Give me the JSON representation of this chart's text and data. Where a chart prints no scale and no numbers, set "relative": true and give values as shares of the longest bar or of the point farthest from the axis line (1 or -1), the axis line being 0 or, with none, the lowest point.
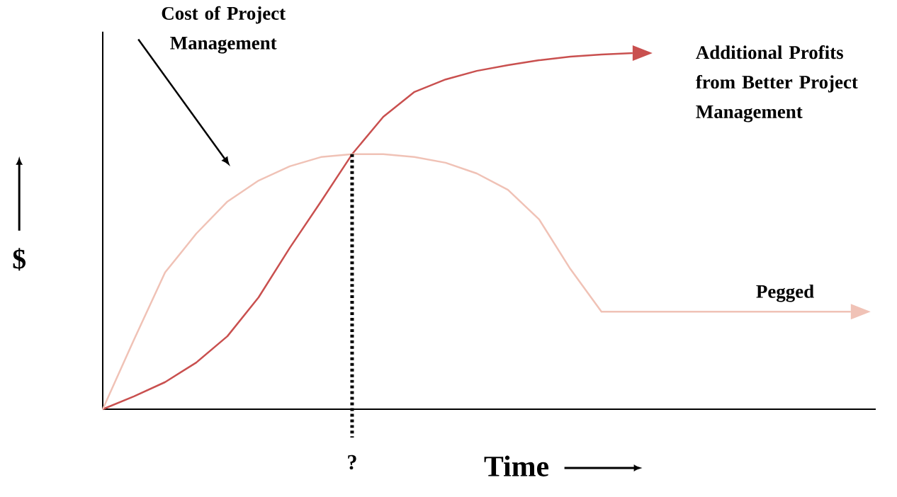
{
  "chart_data": {
    "type": "line",
    "relative": true,
    "xlabel": "Time",
    "ylabel": "$",
    "categories": [
      null,
      null,
      null,
      null,
      null,
      null,
      null,
      null,
      null,
      null,
      null,
      null,
      null,
      null,
      null,
      null,
      null,
      null,
      null,
      null,
      null,
      null,
      null,
      null,
      null
    ],
    "series": [
      {
        "color": "#c9504f",
        "values": [
          0,
          0.036,
          0.076,
          0.131,
          0.205,
          0.314,
          0.453,
          0.583,
          0.716,
          0.821,
          0.891,
          0.926,
          0.95,
          0.966,
          0.98,
          0.99,
          0.996,
          1,
          null,
          null,
          null,
          null,
          null,
          null,
          null
        ]
      },
      {
        "color": "#f0c2b6",
        "values": [
          0,
          0.195,
          0.384,
          0.493,
          0.583,
          0.642,
          0.682,
          0.708,
          0.716,
          0.716,
          0.708,
          0.692,
          0.662,
          0.616,
          0.533,
          0.394,
          0.274,
          0.274,
          0.274,
          0.274,
          0.274,
          0.274,
          0.274,
          0.274,
          0.274
        ]
      }
    ],
    "annotations": [
      "Cost of Project Management",
      "Additional Profits from Better Project Management",
      "Pegged",
      "?"
    ]
  }
}
